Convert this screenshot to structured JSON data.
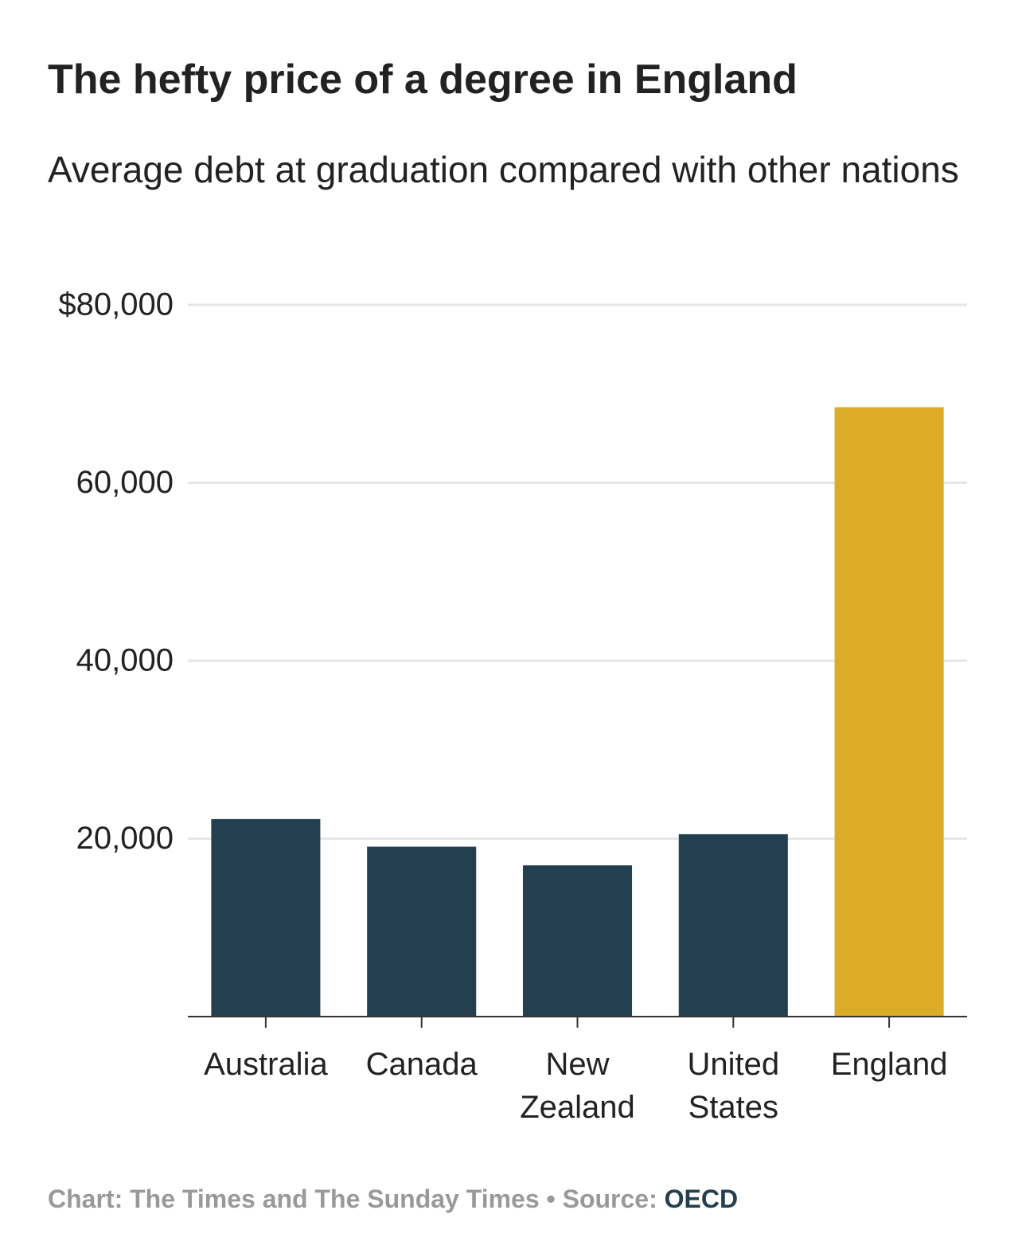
{
  "chart_data": {
    "type": "bar",
    "title": "The hefty price of a degree in England",
    "subtitle": "Average debt at graduation compared with other nations",
    "categories": [
      "Australia",
      "Canada",
      "New Zealand",
      "United States",
      "England"
    ],
    "values": [
      22200,
      19100,
      17000,
      20500,
      68500
    ],
    "colors": [
      "#243f4f",
      "#243f4f",
      "#243f4f",
      "#243f4f",
      "#dcac27"
    ],
    "ylim": [
      0,
      80000
    ],
    "yticks": [
      {
        "value": 20000,
        "label": "20,000"
      },
      {
        "value": 40000,
        "label": "40,000"
      },
      {
        "value": 60000,
        "label": "60,000"
      },
      {
        "value": 80000,
        "label": "$80,000"
      }
    ],
    "grid": true,
    "credit": "Chart: The Times and The Sunday Times • Source:",
    "source": "OECD"
  }
}
